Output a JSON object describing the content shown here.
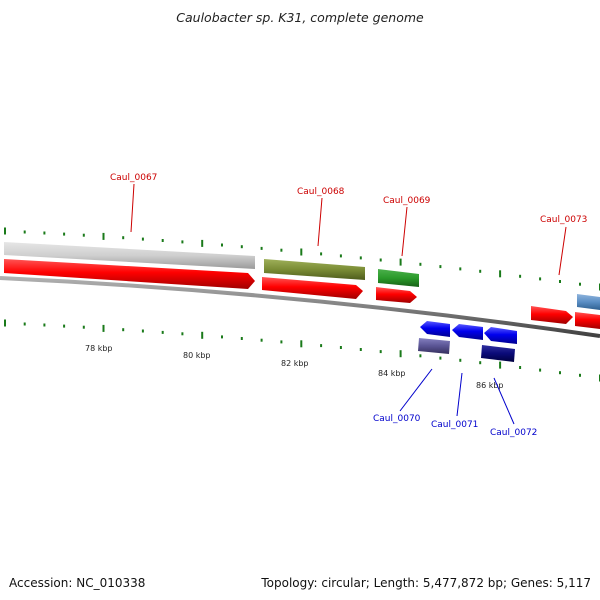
{
  "title": "Caulobacter sp. K31, complete genome",
  "footer": {
    "accession": "Accession: NC_010338",
    "summary": "Topology: circular; Length: 5,477,872 bp; Genes: 5,117"
  },
  "tick_labels": [
    "78 kbp",
    "80 kbp",
    "82 kbp",
    "84 kbp",
    "86 kbp"
  ],
  "genes": {
    "forward": [
      {
        "label": "Caul_0067",
        "color": "#ff0000"
      },
      {
        "label": "Caul_0068",
        "color": "#ff0000"
      },
      {
        "label": "Caul_0069",
        "color": "#ff0000"
      },
      {
        "label": "Caul_0073",
        "color": "#ff0000"
      }
    ],
    "reverse": [
      {
        "label": "Caul_0070",
        "color": "#0000cc"
      },
      {
        "label": "Caul_0071",
        "color": "#0000cc"
      },
      {
        "label": "Caul_0072",
        "color": "#0000cc"
      }
    ]
  },
  "colors": {
    "forward_label": "#cc0000",
    "reverse_label": "#0000cc",
    "tick": "#1a7a1a",
    "backbone": "#808080"
  }
}
